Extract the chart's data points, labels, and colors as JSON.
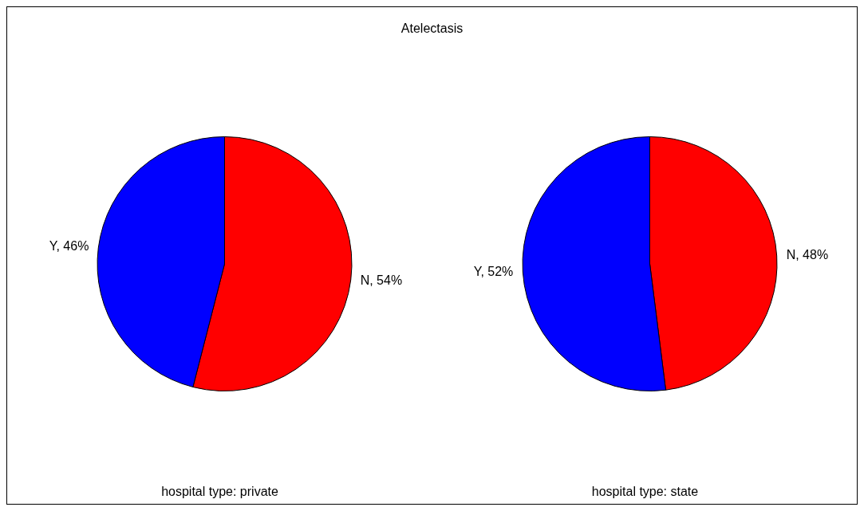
{
  "chart_data": [
    {
      "type": "pie",
      "title": "Atelectasis",
      "categories": [
        "N",
        "Y"
      ],
      "values": [
        54,
        46
      ],
      "colors": [
        "#ff0000",
        "#0000ff"
      ],
      "value_labels": [
        "54%",
        "46%"
      ],
      "annotations": [
        "hospital type: private"
      ],
      "legend": false
    },
    {
      "type": "pie",
      "categories": [
        "N",
        "Y"
      ],
      "values": [
        48,
        52
      ],
      "colors": [
        "#ff0000",
        "#0000ff"
      ],
      "value_labels": [
        "48%",
        "52%"
      ],
      "annotations": [
        "hospital type: state"
      ],
      "legend": false
    }
  ]
}
